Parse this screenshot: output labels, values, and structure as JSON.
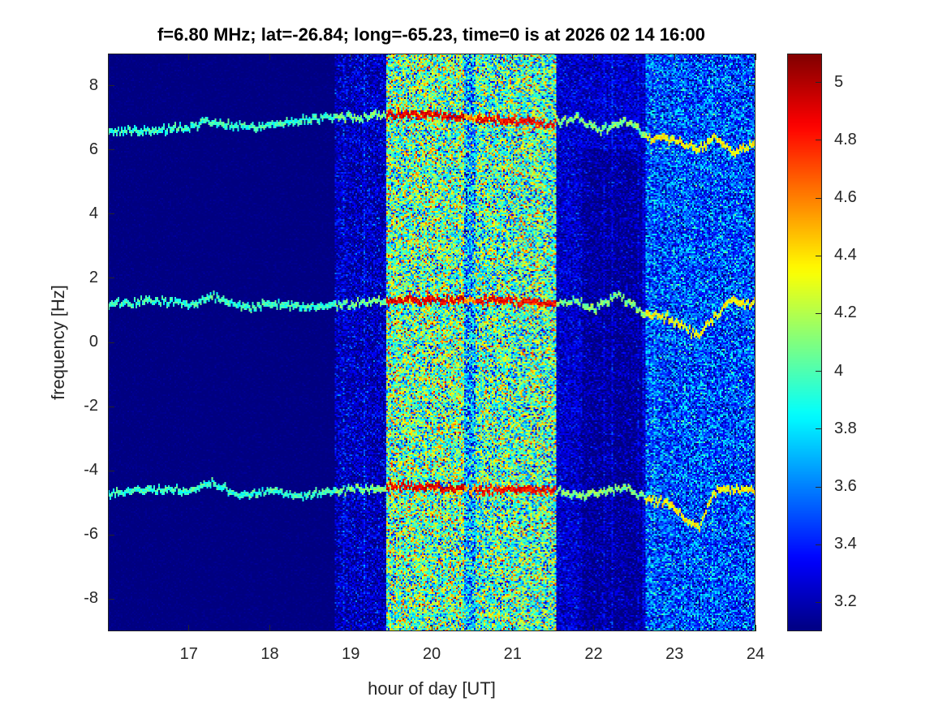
{
  "chart_data": {
    "type": "heatmap",
    "title": "f=6.80 MHz;  lat=-26.84; long=-65.23, time=0 is at 2026 02 14 16:00",
    "xlabel": "hour of day [UT]",
    "ylabel": "frequency [Hz]",
    "xlim": [
      16,
      24
    ],
    "ylim": [
      -9,
      9
    ],
    "clim": [
      3.1,
      5.1
    ],
    "colormap": "jet",
    "xticks": [
      "17",
      "18",
      "19",
      "20",
      "21",
      "22",
      "23",
      "24"
    ],
    "yticks": [
      "8",
      "6",
      "4",
      "2",
      "0",
      "-2",
      "-4",
      "-6",
      "-8"
    ],
    "colorbar_ticks": [
      "5",
      "4.8",
      "4.6",
      "4.4",
      "4.2",
      "4",
      "3.8",
      "3.6",
      "3.4",
      "3.2"
    ],
    "background_regions": [
      {
        "from": 16.0,
        "to": 18.8,
        "mean": 3.1,
        "spread": 0.02
      },
      {
        "from": 18.8,
        "to": 19.45,
        "mean": 3.22,
        "spread": 0.15
      },
      {
        "from": 19.45,
        "to": 20.4,
        "mean": 4.05,
        "spread": 0.35
      },
      {
        "from": 20.4,
        "to": 20.55,
        "mean": 3.7,
        "spread": 0.3
      },
      {
        "from": 20.55,
        "to": 21.55,
        "mean": 4.0,
        "spread": 0.35
      },
      {
        "from": 21.55,
        "to": 22.65,
        "mean": 3.25,
        "spread": 0.12
      },
      {
        "from": 22.65,
        "to": 24.0,
        "mean": 3.5,
        "spread": 0.22
      }
    ],
    "traces": [
      {
        "name": "upper",
        "x": [
          16,
          16.5,
          17,
          17.3,
          17.6,
          18,
          18.4,
          18.7,
          19,
          19.4,
          20,
          20.5,
          21,
          21.5,
          21.8,
          22.1,
          22.4,
          22.7,
          23,
          23.3,
          23.5,
          23.7,
          24
        ],
        "y": [
          6.6,
          6.6,
          6.7,
          6.9,
          6.7,
          6.8,
          6.9,
          7.0,
          7.0,
          7.1,
          7.1,
          7.0,
          6.9,
          6.8,
          7.0,
          6.6,
          6.9,
          6.4,
          6.3,
          6.0,
          6.4,
          5.9,
          6.2
        ]
      },
      {
        "name": "middle",
        "x": [
          16,
          16.5,
          17,
          17.3,
          17.7,
          18,
          18.5,
          18.8,
          19.2,
          19.5,
          20,
          20.5,
          21,
          21.5,
          21.8,
          22,
          22.3,
          22.6,
          22.9,
          23.1,
          23.3,
          23.5,
          23.7,
          24
        ],
        "y": [
          1.2,
          1.3,
          1.2,
          1.4,
          1.1,
          1.2,
          1.1,
          1.2,
          1.2,
          1.3,
          1.3,
          1.3,
          1.3,
          1.2,
          1.3,
          1.0,
          1.5,
          0.9,
          0.8,
          0.5,
          0.2,
          0.8,
          1.3,
          1.2
        ]
      },
      {
        "name": "lower",
        "x": [
          16,
          16.5,
          17,
          17.3,
          17.7,
          18,
          18.4,
          18.8,
          19.2,
          19.5,
          20,
          20.5,
          21,
          21.5,
          21.8,
          22,
          22.4,
          22.6,
          22.9,
          23.1,
          23.3,
          23.5,
          23.7,
          24
        ],
        "y": [
          -4.7,
          -4.6,
          -4.6,
          -4.4,
          -4.8,
          -4.6,
          -4.8,
          -4.6,
          -4.6,
          -4.5,
          -4.5,
          -4.6,
          -4.6,
          -4.6,
          -4.8,
          -4.7,
          -4.5,
          -4.8,
          -5.0,
          -5.4,
          -5.8,
          -4.6,
          -4.6,
          -4.6
        ]
      }
    ]
  }
}
